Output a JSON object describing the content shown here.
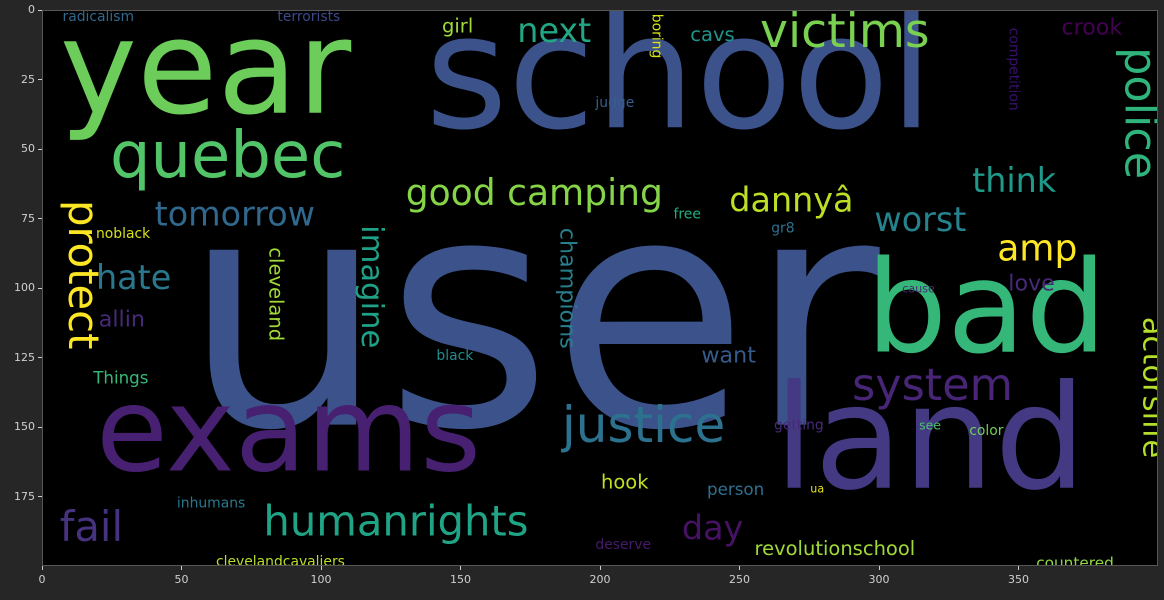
{
  "chart_data": {
    "type": "wordcloud",
    "xlim": [
      0,
      400
    ],
    "ylim": [
      200,
      0
    ],
    "x_ticks": [
      "0",
      "50",
      "100",
      "150",
      "200",
      "250",
      "300",
      "350"
    ],
    "y_ticks": [
      "0",
      "25",
      "50",
      "75",
      "100",
      "125",
      "150",
      "175"
    ],
    "colors": {
      "figure_bg": "#262626",
      "plot_bg": "#000000",
      "tick_text": "#d0d0d0"
    },
    "words": [
      {
        "text": "user",
        "x": 50,
        "y": 52,
        "size": 115,
        "rotation": 0,
        "color": "#3b528b"
      },
      {
        "text": "school",
        "x": 137,
        "y": -6,
        "size": 57,
        "rotation": 0,
        "color": "#3b528b"
      },
      {
        "text": "year",
        "x": 6,
        "y": -3,
        "size": 47,
        "rotation": 0,
        "color": "#6ccd5a"
      },
      {
        "text": "exams",
        "x": 19,
        "y": 130,
        "size": 42,
        "rotation": 0,
        "color": "#482071"
      },
      {
        "text": "land",
        "x": 262,
        "y": 128,
        "size": 52,
        "rotation": 0,
        "color": "#443983"
      },
      {
        "text": "bad",
        "x": 295,
        "y": 84,
        "size": 46,
        "rotation": 0,
        "color": "#35b779"
      },
      {
        "text": "quebec",
        "x": 24,
        "y": 41,
        "size": 23,
        "rotation": 0,
        "color": "#52c569"
      },
      {
        "text": "victims",
        "x": 257,
        "y": -1,
        "size": 17,
        "rotation": 0,
        "color": "#7ad151"
      },
      {
        "text": "police",
        "x": 385,
        "y": 13,
        "size": 16,
        "rotation": 90,
        "color": "#2fb47c"
      },
      {
        "text": "system",
        "x": 290,
        "y": 127,
        "size": 16,
        "rotation": 0,
        "color": "#482576"
      },
      {
        "text": "justice",
        "x": 186,
        "y": 140,
        "size": 18,
        "rotation": 0,
        "color": "#2c728e"
      },
      {
        "text": "humanrights",
        "x": 79,
        "y": 176,
        "size": 15,
        "rotation": 0,
        "color": "#20a486"
      },
      {
        "text": "good camping",
        "x": 130,
        "y": 59,
        "size": 13,
        "rotation": 0,
        "color": "#86d549"
      },
      {
        "text": "tomorrow",
        "x": 40,
        "y": 67,
        "size": 12,
        "rotation": 0,
        "color": "#31688e"
      },
      {
        "text": "dannyâ",
        "x": 246,
        "y": 62,
        "size": 12,
        "rotation": 0,
        "color": "#bddf26"
      },
      {
        "text": "worst",
        "x": 298,
        "y": 69,
        "size": 12,
        "rotation": 0,
        "color": "#26828e"
      },
      {
        "text": "think",
        "x": 333,
        "y": 55,
        "size": 12,
        "rotation": 0,
        "color": "#1f9a8a"
      },
      {
        "text": "amp",
        "x": 342,
        "y": 79,
        "size": 13,
        "rotation": 0,
        "color": "#fde725"
      },
      {
        "text": "protect",
        "x": 7,
        "y": 68,
        "size": 15,
        "rotation": 90,
        "color": "#fde725"
      },
      {
        "text": "hate",
        "x": 19,
        "y": 90,
        "size": 12,
        "rotation": 0,
        "color": "#2a788e"
      },
      {
        "text": "imagine",
        "x": 112,
        "y": 77,
        "size": 11,
        "rotation": 90,
        "color": "#1fa187"
      },
      {
        "text": "actorslife",
        "x": 392,
        "y": 110,
        "size": 11,
        "rotation": 90,
        "color": "#b5de2b"
      },
      {
        "text": "next",
        "x": 170,
        "y": 1,
        "size": 12,
        "rotation": 0,
        "color": "#22a785"
      },
      {
        "text": "fail",
        "x": 6,
        "y": 178,
        "size": 15,
        "rotation": 0,
        "color": "#46327e"
      },
      {
        "text": "day",
        "x": 229,
        "y": 180,
        "size": 12,
        "rotation": 0,
        "color": "#471164"
      },
      {
        "text": "champions",
        "x": 184,
        "y": 78,
        "size": 8,
        "rotation": 90,
        "color": "#277f8e"
      },
      {
        "text": "cleveland",
        "x": 80,
        "y": 85,
        "size": 7,
        "rotation": 90,
        "color": "#a2da37"
      },
      {
        "text": "want",
        "x": 236,
        "y": 120,
        "size": 8,
        "rotation": 0,
        "color": "#375a8c"
      },
      {
        "text": "love",
        "x": 346,
        "y": 94,
        "size": 8,
        "rotation": 0,
        "color": "#482979"
      },
      {
        "text": "allin",
        "x": 20,
        "y": 107,
        "size": 8,
        "rotation": 0,
        "color": "#482979"
      },
      {
        "text": "crook",
        "x": 365,
        "y": 2,
        "size": 8,
        "rotation": 0,
        "color": "#440154"
      },
      {
        "text": "revolutionschool",
        "x": 255,
        "y": 190,
        "size": 7,
        "rotation": 0,
        "color": "#a0da39"
      },
      {
        "text": "hook",
        "x": 200,
        "y": 166,
        "size": 7,
        "rotation": 0,
        "color": "#c2df23"
      },
      {
        "text": "girl",
        "x": 143,
        "y": 2,
        "size": 7,
        "rotation": 0,
        "color": "#a0da39"
      },
      {
        "text": "cavs",
        "x": 232,
        "y": 5,
        "size": 7,
        "rotation": 0,
        "color": "#1f968b"
      },
      {
        "text": "Things",
        "x": 18,
        "y": 129,
        "size": 6,
        "rotation": 0,
        "color": "#37b878"
      },
      {
        "text": "black",
        "x": 141,
        "y": 122,
        "size": 5,
        "rotation": 0,
        "color": "#238a8d"
      },
      {
        "text": "person",
        "x": 238,
        "y": 169,
        "size": 6,
        "rotation": 0,
        "color": "#2d708e"
      },
      {
        "text": "clevelandcavaliers",
        "x": 62,
        "y": 196,
        "size": 5,
        "rotation": 0,
        "color": "#b8de29"
      },
      {
        "text": "countered",
        "x": 356,
        "y": 196,
        "size": 5.5,
        "rotation": 0,
        "color": "#90d743"
      },
      {
        "text": "deserve",
        "x": 198,
        "y": 190,
        "size": 5,
        "rotation": 0,
        "color": "#481a6c"
      },
      {
        "text": "inhumans",
        "x": 48,
        "y": 175,
        "size": 5,
        "rotation": 0,
        "color": "#2a788e"
      },
      {
        "text": "radicalism",
        "x": 7,
        "y": 0,
        "size": 5,
        "rotation": 0,
        "color": "#31688e"
      },
      {
        "text": "terrorists",
        "x": 84,
        "y": 0,
        "size": 5,
        "rotation": 0,
        "color": "#3e4989"
      },
      {
        "text": "noblack",
        "x": 19,
        "y": 78,
        "size": 5,
        "rotation": 0,
        "color": "#d5e21a"
      },
      {
        "text": "free",
        "x": 226,
        "y": 71,
        "size": 5,
        "rotation": 0,
        "color": "#26ad81"
      },
      {
        "text": "gr8",
        "x": 261,
        "y": 76,
        "size": 5,
        "rotation": 0,
        "color": "#2d708e"
      },
      {
        "text": "boring",
        "x": 217,
        "y": 1,
        "size": 5,
        "rotation": 90,
        "color": "#d8e219"
      },
      {
        "text": "judge",
        "x": 198,
        "y": 31,
        "size": 5,
        "rotation": 0,
        "color": "#355f8d"
      },
      {
        "text": "competition",
        "x": 345,
        "y": 6,
        "size": 5,
        "rotation": 90,
        "color": "#3b0f70"
      },
      {
        "text": "getting",
        "x": 262,
        "y": 147,
        "size": 5,
        "rotation": 0,
        "color": "#472a7a"
      },
      {
        "text": "see",
        "x": 314,
        "y": 147,
        "size": 4.5,
        "rotation": 0,
        "color": "#4ac16d"
      },
      {
        "text": "color",
        "x": 332,
        "y": 149,
        "size": 5,
        "rotation": 0,
        "color": "#6ece58"
      },
      {
        "text": "cause",
        "x": 308,
        "y": 98,
        "size": 4,
        "rotation": 0,
        "color": "#482677"
      },
      {
        "text": "ua",
        "x": 275,
        "y": 170,
        "size": 4,
        "rotation": 0,
        "color": "#e5e419"
      }
    ]
  }
}
